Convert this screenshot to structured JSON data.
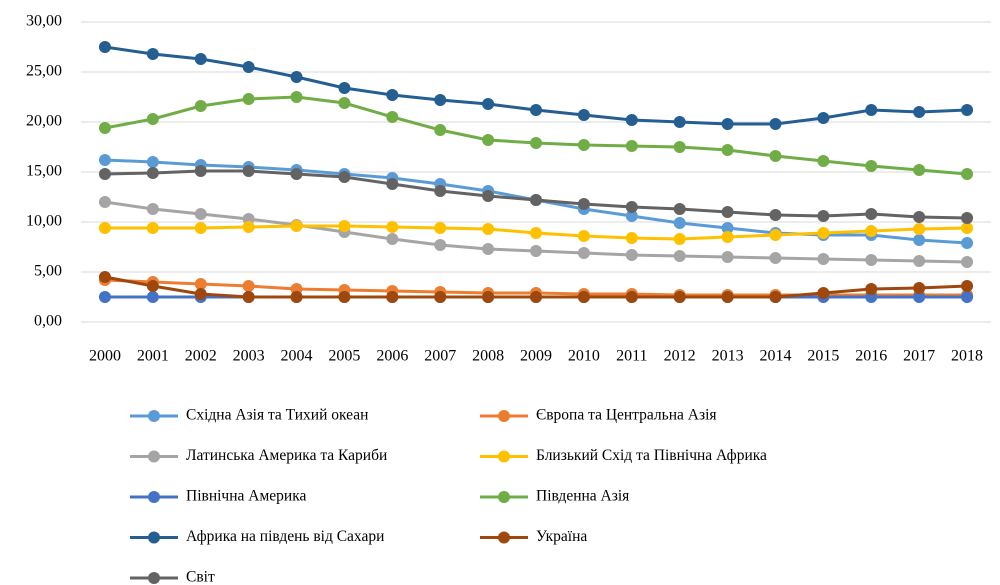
{
  "chart_data": {
    "type": "line",
    "categories": [
      "2000",
      "2001",
      "2002",
      "2003",
      "2004",
      "2005",
      "2006",
      "2007",
      "2008",
      "2009",
      "2010",
      "2011",
      "2012",
      "2013",
      "2014",
      "2015",
      "2016",
      "2017",
      "2018"
    ],
    "ylim": [
      0,
      30
    ],
    "yticks": [
      {
        "value": 0,
        "label": "0,00"
      },
      {
        "value": 5,
        "label": "5,00"
      },
      {
        "value": 10,
        "label": "10,00"
      },
      {
        "value": 15,
        "label": "15,00"
      },
      {
        "value": 20,
        "label": "20,00"
      },
      {
        "value": 25,
        "label": "25,00"
      },
      {
        "value": 30,
        "label": "30,00"
      }
    ],
    "grid": true,
    "series": [
      {
        "name": "Східна Азія та Тихий океан",
        "color": "#5b9bd5",
        "values": [
          16.2,
          16.0,
          15.7,
          15.5,
          15.2,
          14.8,
          14.4,
          13.8,
          13.1,
          12.2,
          11.3,
          10.6,
          9.9,
          9.4,
          8.9,
          8.7,
          8.7,
          8.2,
          7.9
        ]
      },
      {
        "name": "Європа та Центральна Азія",
        "color": "#ed7d31",
        "values": [
          4.2,
          4.0,
          3.8,
          3.6,
          3.3,
          3.2,
          3.1,
          3.0,
          2.9,
          2.9,
          2.8,
          2.8,
          2.7,
          2.7,
          2.7,
          2.7,
          2.7,
          2.7,
          2.7
        ]
      },
      {
        "name": "Латинська Америка та Кариби",
        "color": "#a5a5a5",
        "values": [
          12.0,
          11.3,
          10.8,
          10.3,
          9.7,
          9.0,
          8.3,
          7.7,
          7.3,
          7.1,
          6.9,
          6.7,
          6.6,
          6.5,
          6.4,
          6.3,
          6.2,
          6.1,
          6.0
        ]
      },
      {
        "name": "Близький Схід та Північна Африка",
        "color": "#ffc000",
        "values": [
          9.4,
          9.4,
          9.4,
          9.5,
          9.6,
          9.6,
          9.5,
          9.4,
          9.3,
          8.9,
          8.6,
          8.4,
          8.3,
          8.5,
          8.7,
          8.9,
          9.1,
          9.3,
          9.4
        ]
      },
      {
        "name": "Північна Америка",
        "color": "#4472c4",
        "values": [
          2.5,
          2.5,
          2.5,
          2.5,
          2.5,
          2.5,
          2.5,
          2.5,
          2.5,
          2.5,
          2.5,
          2.5,
          2.5,
          2.5,
          2.5,
          2.5,
          2.5,
          2.5,
          2.5
        ]
      },
      {
        "name": "Південна Азія",
        "color": "#70ad47",
        "values": [
          19.4,
          20.3,
          21.6,
          22.3,
          22.5,
          21.9,
          20.5,
          19.2,
          18.2,
          17.9,
          17.7,
          17.6,
          17.5,
          17.2,
          16.6,
          16.1,
          15.6,
          15.2,
          14.8
        ]
      },
      {
        "name": "Африка на південь від Сахари",
        "color": "#255e91",
        "values": [
          27.5,
          26.8,
          26.3,
          25.5,
          24.5,
          23.4,
          22.7,
          22.2,
          21.8,
          21.2,
          20.7,
          20.2,
          20.0,
          19.8,
          19.8,
          20.4,
          21.2,
          21.0,
          21.2
        ]
      },
      {
        "name": "Україна",
        "color": "#9e480e",
        "values": [
          4.5,
          3.6,
          2.8,
          2.5,
          2.5,
          2.5,
          2.5,
          2.5,
          2.5,
          2.5,
          2.5,
          2.5,
          2.5,
          2.5,
          2.5,
          2.9,
          3.3,
          3.4,
          3.6
        ]
      },
      {
        "name": "Світ",
        "color": "#636363",
        "values": [
          14.8,
          14.9,
          15.1,
          15.1,
          14.8,
          14.5,
          13.8,
          13.1,
          12.6,
          12.2,
          11.8,
          11.5,
          11.3,
          11.0,
          10.7,
          10.6,
          10.8,
          10.5,
          10.4
        ]
      }
    ]
  }
}
